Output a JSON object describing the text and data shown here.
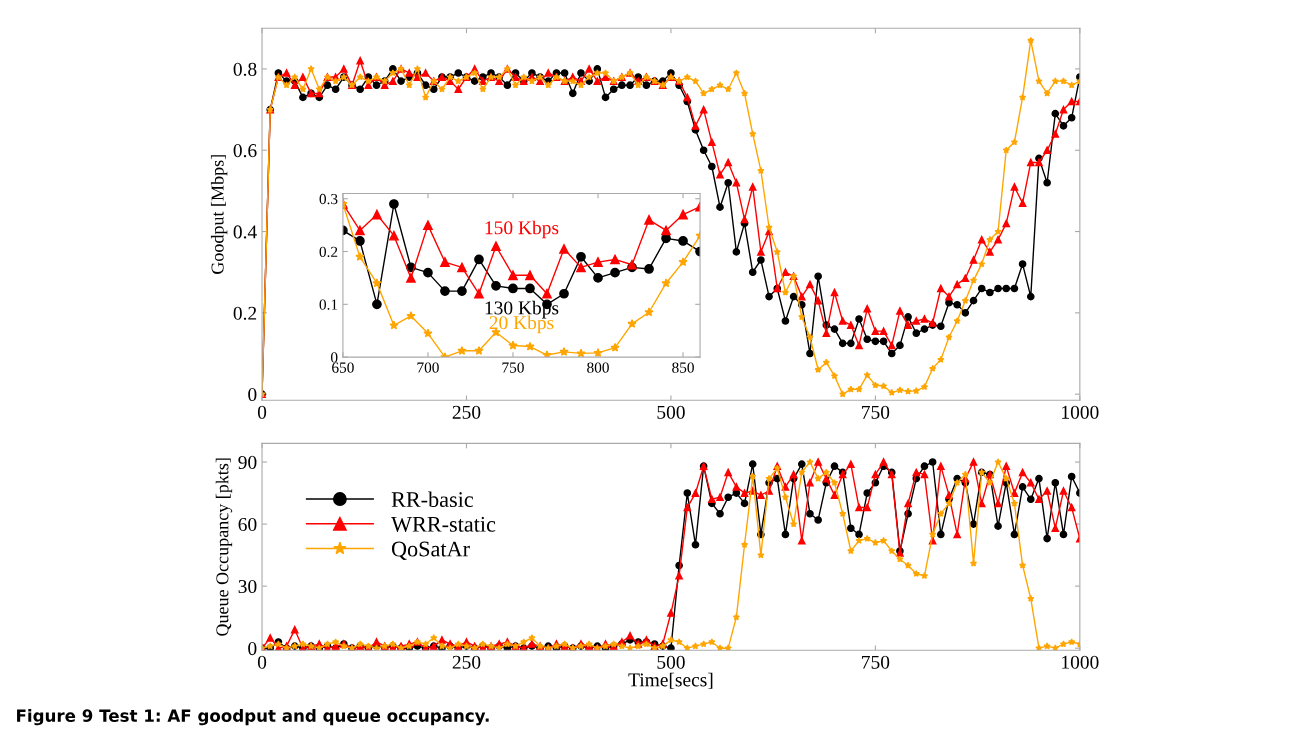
{
  "chart_data": [
    {
      "type": "line",
      "ylabel": "Goodput [Mbps]",
      "xlim": [
        0,
        1000
      ],
      "xticks": [
        0,
        250,
        500,
        750,
        1000
      ],
      "ylim": [
        -0.015,
        0.9
      ],
      "yticks": [
        0,
        0.2,
        0.4,
        0.6,
        0.8
      ],
      "grid": false,
      "legend": false,
      "x": [
        0,
        10,
        20,
        30,
        40,
        50,
        60,
        70,
        80,
        90,
        100,
        110,
        120,
        130,
        140,
        150,
        160,
        170,
        180,
        190,
        200,
        210,
        220,
        230,
        240,
        250,
        260,
        270,
        280,
        290,
        300,
        310,
        320,
        330,
        340,
        350,
        360,
        370,
        380,
        390,
        400,
        410,
        420,
        430,
        440,
        450,
        460,
        470,
        480,
        490,
        500,
        510,
        520,
        530,
        540,
        550,
        560,
        570,
        580,
        590,
        600,
        610,
        620,
        630,
        640,
        650,
        660,
        670,
        680,
        690,
        700,
        710,
        720,
        730,
        740,
        750,
        760,
        770,
        780,
        790,
        800,
        810,
        820,
        830,
        840,
        850,
        860,
        870,
        880,
        890,
        900,
        910,
        920,
        930,
        940,
        950,
        960,
        970,
        980,
        990,
        1000
      ],
      "series": [
        {
          "color": "#000000",
          "marker": "circle",
          "values": [
            0,
            0.7,
            0.79,
            0.77,
            0.77,
            0.73,
            0.74,
            0.73,
            0.76,
            0.75,
            0.78,
            0.76,
            0.75,
            0.78,
            0.76,
            0.77,
            0.8,
            0.77,
            0.78,
            0.79,
            0.76,
            0.75,
            0.78,
            0.78,
            0.79,
            0.78,
            0.77,
            0.78,
            0.79,
            0.78,
            0.76,
            0.79,
            0.77,
            0.79,
            0.78,
            0.77,
            0.79,
            0.79,
            0.74,
            0.79,
            0.77,
            0.8,
            0.73,
            0.75,
            0.76,
            0.76,
            0.78,
            0.76,
            0.77,
            0.77,
            0.79,
            0.76,
            0.72,
            0.65,
            0.6,
            0.56,
            0.46,
            0.52,
            0.35,
            0.42,
            0.3,
            0.33,
            0.24,
            0.26,
            0.18,
            0.24,
            0.22,
            0.1,
            0.29,
            0.17,
            0.16,
            0.125,
            0.125,
            0.185,
            0.135,
            0.13,
            0.13,
            0.1,
            0.12,
            0.19,
            0.15,
            0.16,
            0.17,
            0.167,
            0.225,
            0.22,
            0.2,
            0.23,
            0.26,
            0.25,
            0.26,
            0.26,
            0.26,
            0.32,
            0.24,
            0.58,
            0.52,
            0.69,
            0.66,
            0.68,
            0.78
          ]
        },
        {
          "color": "#ff0000",
          "marker": "triangle",
          "values": [
            0,
            0.7,
            0.78,
            0.79,
            0.76,
            0.78,
            0.74,
            0.74,
            0.78,
            0.78,
            0.8,
            0.76,
            0.82,
            0.76,
            0.78,
            0.76,
            0.77,
            0.8,
            0.79,
            0.78,
            0.79,
            0.77,
            0.78,
            0.77,
            0.75,
            0.78,
            0.8,
            0.77,
            0.78,
            0.77,
            0.8,
            0.78,
            0.77,
            0.78,
            0.77,
            0.79,
            0.78,
            0.77,
            0.78,
            0.77,
            0.8,
            0.77,
            0.78,
            0.77,
            0.78,
            0.79,
            0.77,
            0.78,
            0.77,
            0.76,
            0.78,
            0.77,
            0.73,
            0.66,
            0.7,
            0.62,
            0.54,
            0.57,
            0.52,
            0.43,
            0.51,
            0.35,
            0.4,
            0.26,
            0.3,
            0.29,
            0.24,
            0.27,
            0.23,
            0.15,
            0.25,
            0.18,
            0.17,
            0.12,
            0.21,
            0.155,
            0.155,
            0.12,
            0.205,
            0.17,
            0.18,
            0.185,
            0.175,
            0.26,
            0.24,
            0.27,
            0.285,
            0.33,
            0.38,
            0.35,
            0.38,
            0.42,
            0.51,
            0.47,
            0.57,
            0.57,
            0.6,
            0.64,
            0.7,
            0.72,
            0.72
          ]
        },
        {
          "color": "#ffa500",
          "marker": "star",
          "values": [
            0,
            0.7,
            0.78,
            0.76,
            0.78,
            0.75,
            0.8,
            0.75,
            0.78,
            0.77,
            0.78,
            0.76,
            0.78,
            0.77,
            0.78,
            0.77,
            0.79,
            0.8,
            0.76,
            0.8,
            0.73,
            0.77,
            0.75,
            0.78,
            0.77,
            0.78,
            0.79,
            0.75,
            0.78,
            0.78,
            0.8,
            0.76,
            0.78,
            0.77,
            0.78,
            0.76,
            0.78,
            0.77,
            0.77,
            0.76,
            0.78,
            0.79,
            0.79,
            0.77,
            0.78,
            0.79,
            0.76,
            0.78,
            0.77,
            0.76,
            0.78,
            0.77,
            0.78,
            0.77,
            0.74,
            0.75,
            0.76,
            0.75,
            0.79,
            0.74,
            0.64,
            0.55,
            0.41,
            0.35,
            0.25,
            0.29,
            0.19,
            0.14,
            0.06,
            0.078,
            0.045,
            0,
            0.012,
            0.012,
            0.047,
            0.022,
            0.02,
            0.004,
            0.01,
            0.007,
            0.008,
            0.018,
            0.063,
            0.085,
            0.14,
            0.18,
            0.23,
            0.28,
            0.32,
            0.38,
            0.4,
            0.6,
            0.62,
            0.73,
            0.87,
            0.77,
            0.74,
            0.77,
            0.77,
            0.76,
            0.77
          ]
        }
      ]
    },
    {
      "type": "line",
      "xlim": [
        650,
        860
      ],
      "xticks": [
        650,
        700,
        750,
        800,
        850
      ],
      "ylim": [
        0,
        0.31
      ],
      "yticks": [
        0,
        0.1,
        0.2,
        0.3
      ],
      "grid": false,
      "annotations": [
        "150 Kbps",
        "130 Kbps",
        "20 Kbps"
      ],
      "x": [
        650,
        660,
        670,
        680,
        690,
        700,
        710,
        720,
        730,
        740,
        750,
        760,
        770,
        780,
        790,
        800,
        810,
        820,
        830,
        840,
        850,
        860
      ],
      "series": [
        {
          "color": "#000000",
          "marker": "circle",
          "values": [
            0.24,
            0.22,
            0.1,
            0.29,
            0.17,
            0.16,
            0.125,
            0.125,
            0.185,
            0.135,
            0.13,
            0.13,
            0.1,
            0.12,
            0.19,
            0.15,
            0.16,
            0.17,
            0.167,
            0.225,
            0.22,
            0.2
          ]
        },
        {
          "color": "#ff0000",
          "marker": "triangle",
          "values": [
            0.29,
            0.24,
            0.27,
            0.23,
            0.15,
            0.25,
            0.18,
            0.17,
            0.12,
            0.21,
            0.155,
            0.155,
            0.12,
            0.205,
            0.17,
            0.18,
            0.185,
            0.175,
            0.26,
            0.24,
            0.27,
            0.285
          ]
        },
        {
          "color": "#ffa500",
          "marker": "star",
          "values": [
            0.29,
            0.19,
            0.14,
            0.06,
            0.078,
            0.045,
            0,
            0.012,
            0.012,
            0.047,
            0.022,
            0.02,
            0.004,
            0.01,
            0.007,
            0.008,
            0.018,
            0.063,
            0.085,
            0.14,
            0.18,
            0.23
          ]
        }
      ]
    },
    {
      "type": "line",
      "xlabel": "Time[secs]",
      "ylabel": "Queue Occupancy [pkts]",
      "xlim": [
        0,
        1000
      ],
      "xticks": [
        0,
        250,
        500,
        750,
        1000
      ],
      "ylim": [
        -1,
        99
      ],
      "yticks": [
        0,
        30,
        60,
        90
      ],
      "grid": false,
      "legend": "left",
      "annotations": [
        "Figure 9 Test 1: AF goodput and queue occupancy."
      ],
      "x": [
        0,
        10,
        20,
        30,
        40,
        50,
        60,
        70,
        80,
        90,
        100,
        110,
        120,
        130,
        140,
        150,
        160,
        170,
        180,
        190,
        200,
        210,
        220,
        230,
        240,
        250,
        260,
        270,
        280,
        290,
        300,
        310,
        320,
        330,
        340,
        350,
        360,
        370,
        380,
        390,
        400,
        410,
        420,
        430,
        440,
        450,
        460,
        470,
        480,
        490,
        500,
        510,
        520,
        530,
        540,
        550,
        560,
        570,
        580,
        590,
        600,
        610,
        620,
        630,
        640,
        650,
        660,
        670,
        680,
        690,
        700,
        710,
        720,
        730,
        740,
        750,
        760,
        770,
        780,
        790,
        800,
        810,
        820,
        830,
        840,
        850,
        860,
        870,
        880,
        890,
        900,
        910,
        920,
        930,
        940,
        950,
        960,
        970,
        980,
        990,
        1000
      ],
      "series": [
        {
          "name": "RR-basic",
          "color": "#000000",
          "marker": "circle",
          "values": [
            0,
            0,
            3,
            0,
            1,
            0,
            1,
            0,
            1,
            0,
            2,
            0,
            1,
            0,
            1,
            0,
            1,
            0,
            0,
            1,
            0,
            1,
            0,
            1,
            0,
            1,
            0,
            1,
            0,
            1,
            0,
            1,
            0,
            1,
            0,
            1,
            0,
            1,
            0,
            1,
            0,
            1,
            0,
            1,
            2,
            4,
            3,
            3,
            2,
            1,
            0,
            40,
            75,
            50,
            88,
            70,
            65,
            73,
            75,
            70,
            89,
            55,
            80,
            82,
            55,
            82,
            89,
            65,
            62,
            80,
            88,
            85,
            58,
            55,
            75,
            80,
            88,
            85,
            47,
            65,
            82,
            88,
            90,
            55,
            72,
            82,
            80,
            60,
            85,
            84,
            59,
            80,
            55,
            78,
            72,
            82,
            53,
            80,
            55,
            83,
            75
          ]
        },
        {
          "name": "WRR-static",
          "color": "#ff0000",
          "marker": "triangle",
          "values": [
            0,
            5,
            0,
            1,
            9,
            0,
            1,
            2,
            0,
            1,
            2,
            0,
            1,
            0,
            3,
            1,
            0,
            1,
            2,
            3,
            0,
            1,
            4,
            2,
            1,
            3,
            1,
            0,
            1,
            2,
            3,
            1,
            0,
            2,
            1,
            0,
            2,
            1,
            0,
            2,
            1,
            0,
            2,
            1,
            3,
            6,
            2,
            4,
            1,
            2,
            17,
            35,
            68,
            75,
            88,
            72,
            73,
            85,
            78,
            75,
            76,
            74,
            76,
            88,
            78,
            84,
            52,
            80,
            90,
            82,
            74,
            84,
            89,
            68,
            68,
            84,
            90,
            84,
            46,
            70,
            85,
            84,
            52,
            88,
            74,
            55,
            82,
            90,
            70,
            84,
            70,
            88,
            75,
            85,
            80,
            72,
            76,
            58,
            76,
            68,
            53
          ]
        },
        {
          "name": "QoSatAr",
          "color": "#ffa500",
          "marker": "star",
          "values": [
            0,
            1,
            2,
            0,
            1,
            2,
            1,
            0,
            2,
            3,
            1,
            0,
            2,
            1,
            0,
            1,
            2,
            0,
            1,
            3,
            2,
            5,
            1,
            0,
            2,
            1,
            0,
            2,
            1,
            0,
            2,
            1,
            3,
            5,
            1,
            0,
            1,
            2,
            0,
            1,
            2,
            0,
            1,
            2,
            1,
            0,
            1,
            2,
            0,
            1,
            4,
            3,
            0,
            1,
            2,
            3,
            0,
            0,
            15,
            50,
            83,
            45,
            82,
            87,
            73,
            60,
            85,
            90,
            82,
            85,
            80,
            65,
            47,
            52,
            53,
            51,
            52,
            47,
            43,
            40,
            36,
            35,
            55,
            65,
            70,
            80,
            84,
            41,
            85,
            80,
            90,
            82,
            70,
            40,
            24,
            0,
            1,
            0,
            2,
            3,
            2
          ]
        }
      ]
    }
  ]
}
